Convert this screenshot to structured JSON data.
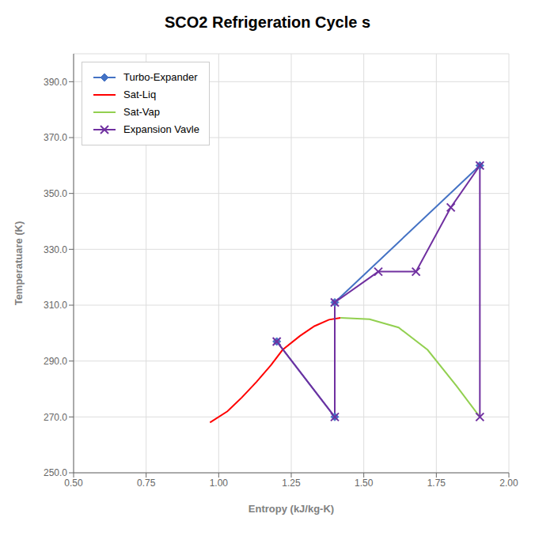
{
  "chart_data": {
    "type": "line",
    "title": "SCO2 Refrigeration Cycle s",
    "x_label": "Entropy (kJ/kg-K)",
    "y_label": "Temperatuare (K)",
    "xlim": [
      0.5,
      2.0
    ],
    "ylim": [
      250.0,
      400.0
    ],
    "xticks": [
      {
        "value": 0.5,
        "label": "0.50"
      },
      0.75,
      {
        "value": 1.0,
        "label": "1.00"
      },
      1.25,
      {
        "value": 1.5,
        "label": "1.50"
      },
      1.75,
      {
        "value": 2.0,
        "label": "2.00"
      }
    ],
    "yticks": [
      {
        "value": 250.0,
        "label": "250.0"
      },
      {
        "value": 270.0,
        "label": "270.0"
      },
      {
        "value": 290.0,
        "label": "290.0"
      },
      {
        "value": 310.0,
        "label": "310.0"
      },
      {
        "value": 330.0,
        "label": "330.0"
      },
      {
        "value": 350.0,
        "label": "350.0"
      },
      {
        "value": 370.0,
        "label": "370.0"
      },
      {
        "value": 390.0,
        "label": "390.0"
      }
    ],
    "grid": true,
    "legend": "upper left",
    "series": [
      {
        "name": "Turbo-Expander",
        "color": "#4472C4",
        "marker": "diamond",
        "x": [
          1.2,
          1.4,
          1.4,
          1.9
        ],
        "values": [
          297.0,
          270.0,
          311.0,
          360.0
        ]
      },
      {
        "name": "Sat-Liq",
        "color": "#FF0000",
        "x": [
          0.97,
          1.03,
          1.08,
          1.13,
          1.18,
          1.22,
          1.28,
          1.33,
          1.38,
          1.42
        ],
        "values": [
          268.0,
          272.0,
          277.0,
          282.5,
          288.5,
          294.0,
          299.0,
          302.5,
          304.8,
          305.5
        ]
      },
      {
        "name": "Sat-Vap",
        "color": "#92D050",
        "x": [
          1.42,
          1.52,
          1.62,
          1.72,
          1.82,
          1.9
        ],
        "values": [
          305.5,
          305.0,
          302.0,
          294.0,
          281.0,
          270.0
        ]
      },
      {
        "name": "Expansion Vavle",
        "color": "#7030A0",
        "marker": "x",
        "x": [
          1.2,
          1.4,
          1.4,
          1.55,
          1.68,
          1.8,
          1.9,
          1.9
        ],
        "values": [
          297.0,
          270.0,
          311.0,
          322.0,
          322.0,
          345.0,
          360.0,
          270.0
        ]
      }
    ]
  }
}
